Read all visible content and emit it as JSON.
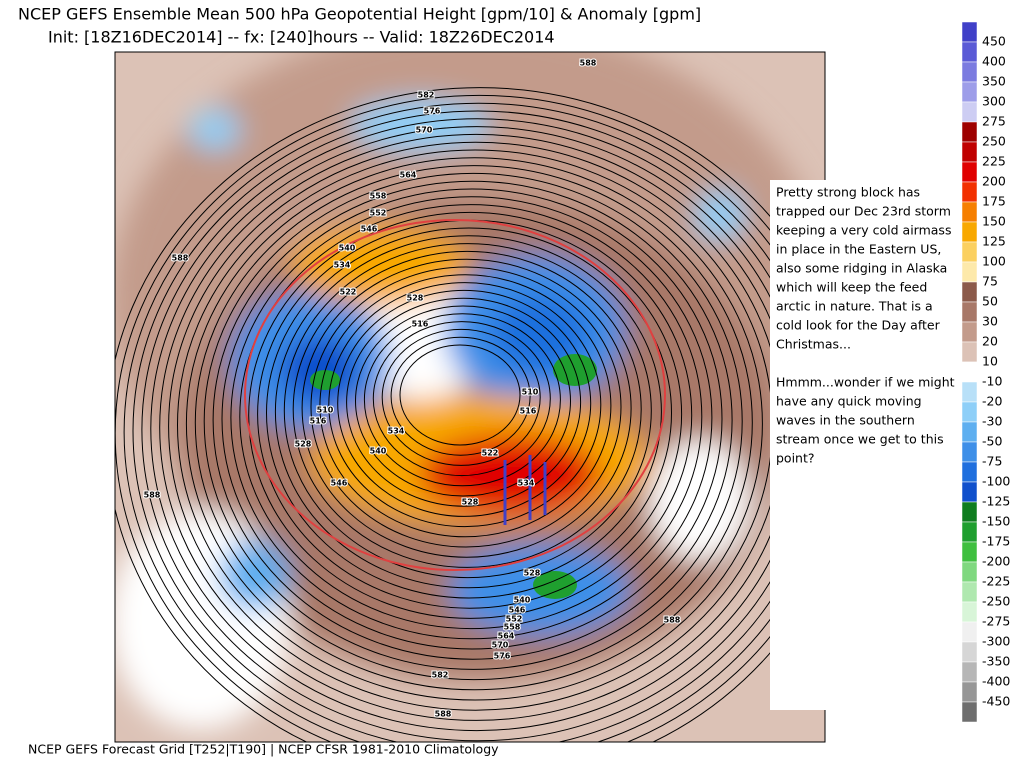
{
  "header": {
    "title": "NCEP GEFS Ensemble Mean 500 hPa Geopotential Height [gpm/10] & Anomaly [gpm]",
    "subtitle": "Init: [18Z16DEC2014] -- fx: [240]hours -- Valid: 18Z26DEC2014"
  },
  "footer": "NCEP GEFS Forecast Grid [T252|T190] | NCEP CFSR 1981-2010 Climatology",
  "colorbar": {
    "labels": [
      450,
      400,
      350,
      300,
      275,
      250,
      225,
      200,
      175,
      150,
      125,
      100,
      75,
      50,
      30,
      20,
      10,
      -10,
      -20,
      -30,
      -50,
      -75,
      -100,
      -125,
      -150,
      -175,
      -200,
      -225,
      -250,
      -275,
      -300,
      -350,
      -400,
      -450
    ],
    "colors": [
      "#4040c8",
      "#5a5ad6",
      "#7b7be0",
      "#9d9de9",
      "#cdcdf3",
      "#9e0000",
      "#c00000",
      "#e00000",
      "#f23000",
      "#f67f00",
      "#f8a800",
      "#fbd060",
      "#fde9aa",
      "#8c5a4a",
      "#a87868",
      "#c39b8b",
      "#dcc2b6",
      "#ffffff",
      "#b8e0f8",
      "#8ecff8",
      "#5eaff0",
      "#3e8fe8",
      "#1f6fde",
      "#1050cc",
      "#0f7d1f",
      "#1f9f2f",
      "#3fbf3f",
      "#7fd87f",
      "#afe8af",
      "#d8f5d8",
      "#f0f0f0",
      "#d6d6d6",
      "#b6b6b6",
      "#969696",
      "#6e6e6e"
    ]
  },
  "annotation": {
    "paragraphs": [
      [
        "Pretty strong block has",
        "trapped our Dec 23rd storm",
        "keeping a very cold airmass",
        "in place in the Eastern US,",
        "also some ridging in Alaska",
        "which will keep the feed",
        "arctic in nature. That is a",
        "cold look for the Day after",
        "Christmas..."
      ],
      [
        "Hmmm...wonder if we might",
        "have any quick moving",
        "waves in the southern",
        "stream once we get to this",
        "point?"
      ]
    ]
  },
  "contour_labels": [
    "588",
    "582",
    "576",
    "570",
    "564",
    "558",
    "552",
    "546",
    "540",
    "534",
    "522",
    "528",
    "516",
    "588",
    "510",
    "516",
    "528",
    "540",
    "534",
    "546",
    "522",
    "528",
    "534",
    "510",
    "516",
    "588",
    "528",
    "540",
    "546",
    "552",
    "558",
    "564",
    "570",
    "576",
    "582",
    "588",
    "588"
  ]
}
